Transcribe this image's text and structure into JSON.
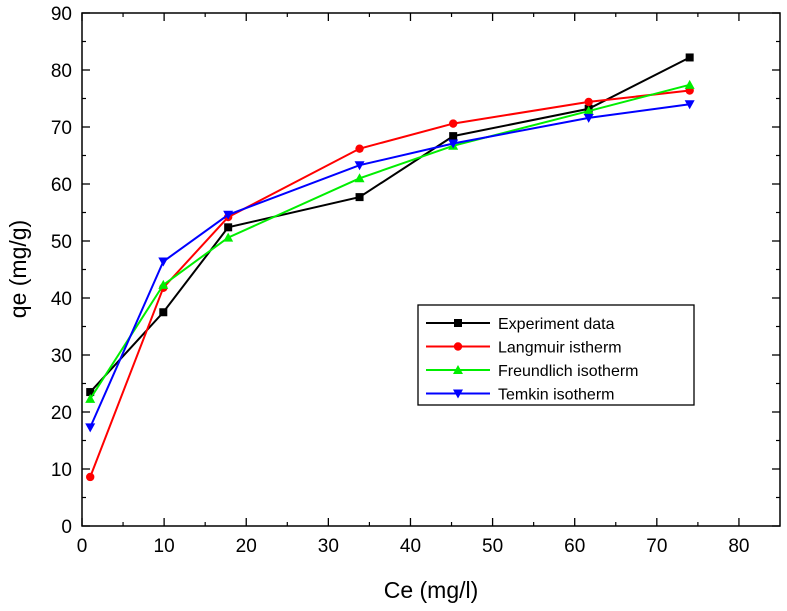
{
  "chart_data": {
    "type": "line",
    "xlabel": "Ce (mg/l)",
    "ylabel": "qe (mg/g)",
    "xlim": [
      0,
      85
    ],
    "ylim": [
      0,
      90
    ],
    "xticks": [
      0,
      10,
      20,
      30,
      40,
      50,
      60,
      70,
      80
    ],
    "yticks": [
      0,
      10,
      20,
      30,
      40,
      50,
      60,
      70,
      80,
      90
    ],
    "grid": false,
    "legend_position": "center-right",
    "series": [
      {
        "name": "Experiment data",
        "color": "#000000",
        "marker": "square",
        "x": [
          1.0,
          9.9,
          17.8,
          33.8,
          45.2,
          61.7,
          74.0
        ],
        "y": [
          23.5,
          37.5,
          52.4,
          57.7,
          68.4,
          73.2,
          82.2
        ]
      },
      {
        "name": "Langmuir istherm",
        "color": "#ff0000",
        "marker": "circle",
        "x": [
          1.0,
          9.9,
          17.8,
          33.8,
          45.2,
          61.7,
          74.0
        ],
        "y": [
          8.6,
          41.8,
          54.2,
          66.2,
          70.6,
          74.4,
          76.4
        ]
      },
      {
        "name": "Freundlich isotherm",
        "color": "#00ee00",
        "marker": "triangle-up",
        "x": [
          1.0,
          9.9,
          17.8,
          33.8,
          45.2,
          61.7,
          74.0
        ],
        "y": [
          22.3,
          42.3,
          50.6,
          61.0,
          66.7,
          72.8,
          77.4
        ]
      },
      {
        "name": "Temkin isotherm",
        "color": "#0000ff",
        "marker": "triangle-down",
        "x": [
          1.0,
          9.9,
          17.8,
          33.8,
          45.2,
          61.7,
          74.0
        ],
        "y": [
          17.3,
          46.4,
          54.6,
          63.3,
          67.1,
          71.6,
          74.0
        ]
      }
    ]
  }
}
